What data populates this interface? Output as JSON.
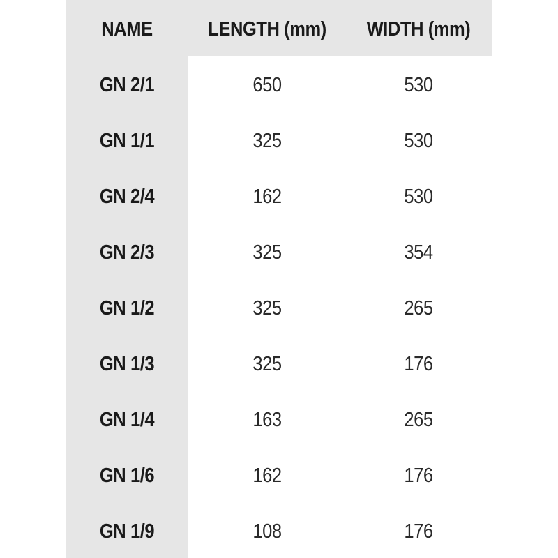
{
  "table": {
    "header": [
      "NAME",
      "LENGTH (mm)",
      "WIDTH (mm)"
    ],
    "rows": [
      [
        "GN 2/1",
        650,
        530
      ],
      [
        "GN 1/1",
        325,
        530
      ],
      [
        "GN 2/4",
        162,
        530
      ],
      [
        "GN 2/3",
        325,
        354
      ],
      [
        "GN 1/2",
        325,
        265
      ],
      [
        "GN 1/3",
        325,
        176
      ],
      [
        "GN 1/4",
        163,
        265
      ],
      [
        "GN 1/6",
        162,
        176
      ],
      [
        "GN 1/9",
        108,
        176
      ]
    ]
  }
}
